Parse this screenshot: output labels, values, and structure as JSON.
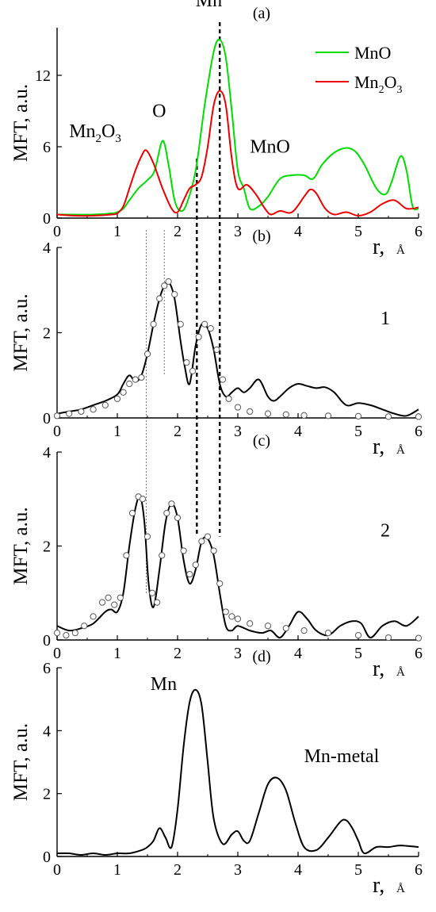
{
  "figure": {
    "axis_label_y": "MFT, a.u.",
    "axis_label_x": "r,",
    "axis_unit_x": "Å"
  },
  "chart_data": [
    {
      "type": "line",
      "panel_label": "(a)",
      "xlim": [
        0,
        6
      ],
      "ylim": [
        0,
        16
      ],
      "x_ticks": [
        0,
        1,
        2,
        3,
        4,
        5,
        6
      ],
      "y_ticks": [
        0,
        6,
        12
      ],
      "legend": {
        "placement": "top-right"
      },
      "series": [
        {
          "name": "MnO",
          "color": "#00dd00",
          "x": [
            0,
            0.3,
            0.6,
            0.9,
            1.0,
            1.1,
            1.2,
            1.35,
            1.5,
            1.62,
            1.75,
            1.85,
            1.95,
            2.05,
            2.15,
            2.3,
            2.45,
            2.6,
            2.7,
            2.8,
            2.9,
            3.0,
            3.1,
            3.2,
            3.35,
            3.5,
            3.7,
            3.9,
            4.1,
            4.25,
            4.4,
            4.6,
            4.8,
            4.95,
            5.1,
            5.3,
            5.45,
            5.55,
            5.7,
            5.8,
            5.9,
            6.0
          ],
          "y": [
            0.3,
            0.3,
            0.3,
            0.4,
            0.5,
            0.8,
            1.5,
            2.5,
            3.2,
            4.0,
            6.5,
            4.5,
            1.5,
            0.6,
            1.2,
            4.0,
            9.5,
            14.0,
            15.0,
            13.5,
            9.0,
            4.0,
            2.5,
            0.8,
            1.0,
            1.8,
            3.3,
            3.6,
            3.6,
            3.3,
            4.5,
            5.5,
            5.9,
            5.6,
            4.5,
            2.5,
            2.0,
            3.0,
            5.2,
            4.0,
            1.0,
            0.8
          ]
        },
        {
          "name": "Mn₂O₃",
          "color": "#ee0000",
          "x": [
            0,
            0.3,
            0.6,
            0.9,
            1.0,
            1.1,
            1.2,
            1.3,
            1.4,
            1.48,
            1.6,
            1.75,
            1.9,
            2.0,
            2.1,
            2.2,
            2.3,
            2.4,
            2.5,
            2.6,
            2.7,
            2.8,
            2.9,
            3.0,
            3.15,
            3.3,
            3.45,
            3.55,
            3.7,
            3.9,
            4.1,
            4.2,
            4.3,
            4.45,
            4.6,
            4.8,
            5.0,
            5.2,
            5.4,
            5.6,
            5.8,
            6.0
          ],
          "y": [
            0.3,
            0.2,
            0.2,
            0.3,
            0.4,
            1.0,
            2.5,
            4.0,
            5.2,
            5.7,
            4.6,
            2.5,
            0.8,
            0.5,
            1.5,
            2.5,
            2.8,
            3.5,
            6.0,
            9.5,
            10.7,
            9.5,
            5.0,
            2.5,
            2.8,
            2.0,
            0.8,
            0.3,
            0.6,
            0.5,
            1.8,
            2.4,
            2.1,
            0.8,
            0.3,
            0.5,
            0.2,
            0.5,
            1.2,
            1.5,
            0.8,
            0.9
          ]
        }
      ],
      "annotations": [
        {
          "text": "Mn",
          "x": 2.3,
          "y": 17.8
        },
        {
          "text": "O",
          "x": 1.58,
          "y": 8.5
        },
        {
          "text_main": "Mn",
          "sub1": "2",
          "text_mid": "O",
          "sub2": "3",
          "x": 0.2,
          "y": 6.8
        },
        {
          "text": "MnO",
          "x": 3.2,
          "y": 5.5
        }
      ]
    },
    {
      "type": "line",
      "panel_label": "(b)",
      "series_label": "1",
      "xlim": [
        0,
        6
      ],
      "ylim": [
        0,
        4
      ],
      "x_ticks": [
        0,
        1,
        2,
        3,
        4,
        5,
        6
      ],
      "y_ticks": [
        0,
        2,
        4
      ],
      "series": [
        {
          "style": "solid",
          "x": [
            0,
            0.2,
            0.4,
            0.6,
            0.8,
            1.0,
            1.1,
            1.2,
            1.3,
            1.4,
            1.5,
            1.6,
            1.7,
            1.78,
            1.85,
            1.95,
            2.05,
            2.12,
            2.2,
            2.3,
            2.4,
            2.5,
            2.6,
            2.7,
            2.8,
            2.9,
            3.0,
            3.1,
            3.2,
            3.35,
            3.5,
            3.6,
            3.7,
            3.85,
            4.0,
            4.15,
            4.3,
            4.45,
            4.6,
            4.8,
            5.0,
            5.2,
            5.4,
            5.6,
            5.8,
            6.0
          ],
          "y": [
            0.1,
            0.15,
            0.2,
            0.3,
            0.4,
            0.55,
            0.8,
            1.0,
            0.85,
            1.0,
            1.5,
            2.2,
            2.8,
            3.1,
            3.2,
            2.8,
            1.8,
            1.2,
            0.8,
            1.7,
            2.2,
            2.1,
            1.6,
            0.8,
            0.5,
            0.6,
            0.7,
            0.6,
            0.7,
            0.9,
            0.5,
            0.4,
            0.5,
            0.7,
            0.8,
            0.75,
            0.7,
            0.72,
            0.6,
            0.3,
            0.35,
            0.3,
            0.2,
            0.1,
            0.05,
            0.2
          ]
        },
        {
          "style": "circles",
          "x": [
            0,
            0.2,
            0.4,
            0.6,
            0.8,
            1.0,
            1.1,
            1.2,
            1.3,
            1.4,
            1.5,
            1.6,
            1.7,
            1.78,
            1.85,
            1.95,
            2.05,
            2.15,
            2.25,
            2.35,
            2.45,
            2.55,
            2.65,
            2.75,
            2.85,
            3.0,
            3.2,
            3.5,
            3.8,
            4.1,
            4.5,
            5.0,
            5.5,
            6.0
          ],
          "y": [
            0.05,
            0.1,
            0.15,
            0.2,
            0.3,
            0.45,
            0.6,
            0.8,
            0.9,
            0.95,
            1.5,
            2.2,
            2.8,
            3.1,
            3.2,
            2.9,
            2.2,
            1.3,
            1.1,
            1.9,
            2.2,
            2.1,
            1.6,
            0.9,
            0.45,
            0.25,
            0.15,
            0.1,
            0.08,
            0.06,
            0.05,
            0.04,
            0.03,
            0.03
          ]
        }
      ]
    },
    {
      "type": "line",
      "panel_label": "(c)",
      "series_label": "2",
      "xlim": [
        0,
        6
      ],
      "ylim": [
        0,
        4
      ],
      "x_ticks": [
        0,
        1,
        2,
        3,
        4,
        5,
        6
      ],
      "y_ticks": [
        0,
        2,
        4
      ],
      "series": [
        {
          "style": "solid",
          "x": [
            0,
            0.2,
            0.4,
            0.6,
            0.8,
            0.9,
            1.0,
            1.1,
            1.2,
            1.3,
            1.38,
            1.45,
            1.52,
            1.6,
            1.7,
            1.8,
            1.9,
            2.0,
            2.1,
            2.2,
            2.3,
            2.4,
            2.5,
            2.6,
            2.7,
            2.8,
            2.9,
            3.0,
            3.2,
            3.4,
            3.55,
            3.7,
            3.85,
            4.0,
            4.15,
            4.3,
            4.5,
            4.7,
            4.9,
            5.05,
            5.2,
            5.4,
            5.6,
            5.8,
            6.0
          ],
          "y": [
            0.3,
            0.2,
            0.25,
            0.35,
            0.6,
            0.65,
            0.6,
            1.0,
            2.0,
            2.8,
            3.05,
            2.5,
            1.2,
            0.7,
            1.5,
            2.5,
            2.9,
            2.6,
            1.7,
            1.2,
            1.5,
            2.1,
            2.15,
            1.8,
            1.0,
            0.3,
            0.2,
            0.3,
            0.2,
            0.15,
            0.2,
            0.05,
            0.3,
            0.6,
            0.45,
            0.2,
            0.1,
            0.3,
            0.4,
            0.35,
            0.05,
            0.3,
            0.4,
            0.3,
            0.5
          ]
        },
        {
          "style": "circles",
          "x": [
            0,
            0.15,
            0.3,
            0.45,
            0.6,
            0.75,
            0.85,
            0.95,
            1.05,
            1.15,
            1.25,
            1.35,
            1.42,
            1.5,
            1.58,
            1.66,
            1.74,
            1.82,
            1.9,
            2.0,
            2.1,
            2.2,
            2.3,
            2.4,
            2.5,
            2.6,
            2.7,
            2.8,
            2.9,
            3.0,
            3.2,
            3.5,
            3.8,
            4.1,
            4.5,
            5.0,
            5.5,
            6.0
          ],
          "y": [
            0.15,
            0.1,
            0.15,
            0.3,
            0.5,
            0.8,
            0.9,
            0.75,
            0.9,
            1.8,
            2.7,
            3.05,
            3.0,
            2.2,
            1.0,
            0.8,
            1.8,
            2.7,
            2.9,
            2.6,
            1.9,
            1.4,
            1.6,
            2.1,
            2.2,
            1.9,
            1.2,
            0.6,
            0.5,
            0.45,
            0.35,
            0.3,
            0.25,
            0.2,
            0.15,
            0.1,
            0.05,
            0.04
          ]
        }
      ]
    },
    {
      "type": "line",
      "panel_label": "(d)",
      "xlim": [
        0,
        6
      ],
      "ylim": [
        0,
        6
      ],
      "x_ticks": [
        0,
        1,
        2,
        3,
        4,
        5,
        6
      ],
      "y_ticks": [
        0,
        2,
        4,
        6
      ],
      "series": [
        {
          "name": "Mn-metal",
          "style": "solid",
          "x": [
            0,
            0.2,
            0.4,
            0.6,
            0.8,
            1.0,
            1.2,
            1.4,
            1.5,
            1.6,
            1.7,
            1.8,
            1.9,
            2.0,
            2.1,
            2.2,
            2.3,
            2.4,
            2.5,
            2.6,
            2.75,
            2.9,
            3.0,
            3.1,
            3.2,
            3.35,
            3.5,
            3.65,
            3.8,
            3.95,
            4.1,
            4.3,
            4.5,
            4.7,
            4.8,
            4.9,
            5.0,
            5.1,
            5.3,
            5.5,
            5.7,
            6.0
          ],
          "y": [
            0.1,
            0.1,
            0.05,
            0.1,
            0.05,
            0.1,
            0.1,
            0.2,
            0.3,
            0.5,
            0.9,
            0.6,
            0.3,
            1.5,
            3.5,
            4.9,
            5.3,
            4.8,
            3.0,
            1.2,
            0.4,
            0.7,
            0.8,
            0.5,
            0.5,
            1.4,
            2.3,
            2.5,
            2.1,
            1.1,
            0.3,
            0.2,
            0.6,
            1.1,
            1.15,
            0.9,
            0.5,
            0.1,
            0.3,
            0.3,
            0.35,
            0.3
          ]
        }
      ],
      "annotations": [
        {
          "text": "Mn",
          "x": 1.55,
          "y": 5.3
        },
        {
          "text": "Mn-metal",
          "x": 4.1,
          "y": 3.0
        }
      ]
    }
  ],
  "guide_lines": [
    {
      "x": 1.48,
      "style": "dotted",
      "from_panel": 0,
      "to_panel": 2
    },
    {
      "x": 1.78,
      "style": "dotted",
      "from_panel": 0,
      "to_panel": 1
    },
    {
      "x": 2.32,
      "style": "dashed",
      "from_panel": 0,
      "to_panel": 2
    },
    {
      "x": 2.7,
      "style": "dashed",
      "from_panel": 0,
      "to_panel": 2
    }
  ]
}
